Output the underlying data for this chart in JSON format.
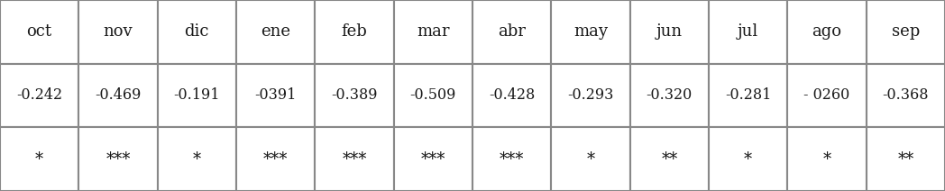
{
  "months": [
    "oct",
    "nov",
    "dic",
    "ene",
    "feb",
    "mar",
    "abr",
    "may",
    "jun",
    "jul",
    "ago",
    "sep"
  ],
  "values": [
    "-0.242",
    "-0.469",
    "-0.191",
    "-0391",
    "-0.389",
    "-0.509",
    "-0.428",
    "-0.293",
    "-0.320",
    "-0.281",
    "- 0260",
    "-0.368"
  ],
  "stars": [
    "*",
    "***",
    "*",
    "***",
    "***",
    "***",
    "***",
    "*",
    "**",
    "*",
    "*",
    "**"
  ],
  "bg_color": "#f0f0f0",
  "cell_bg": "#ffffff",
  "text_color": "#1a1a1a",
  "border_color": "#888888",
  "header_fontsize": 13,
  "value_fontsize": 11.5,
  "star_fontsize": 13,
  "figsize": [
    10.48,
    2.12
  ],
  "dpi": 100
}
